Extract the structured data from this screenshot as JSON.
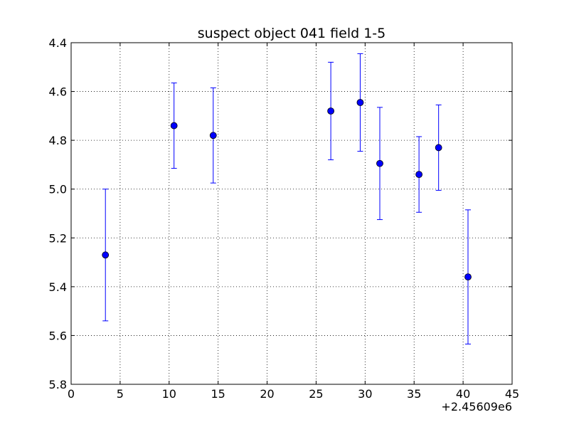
{
  "chart_data": {
    "type": "scatter",
    "title": "suspect object 041 field 1-5",
    "xlabel": "",
    "ylabel": "",
    "x_offset_label": "+2.45609e6",
    "xlim": [
      0,
      45
    ],
    "ylim": [
      5.8,
      4.4
    ],
    "y_inverted": true,
    "grid": true,
    "x_ticks": [
      "0",
      "5",
      "10",
      "15",
      "20",
      "25",
      "30",
      "35",
      "40",
      "45"
    ],
    "y_ticks": [
      "4.4",
      "4.6",
      "4.8",
      "5.0",
      "5.2",
      "5.4",
      "5.6",
      "5.8"
    ],
    "marker_color": "#0000ff",
    "series": [
      {
        "x": [
          3.5,
          10.5,
          14.5,
          26.5,
          29.5,
          31.5,
          35.5,
          37.5,
          40.5
        ],
        "y": [
          5.27,
          4.74,
          4.78,
          4.68,
          4.645,
          4.895,
          4.94,
          4.83,
          5.36
        ],
        "yerr": [
          0.27,
          0.175,
          0.195,
          0.2,
          0.2,
          0.23,
          0.155,
          0.175,
          0.275
        ]
      }
    ]
  }
}
